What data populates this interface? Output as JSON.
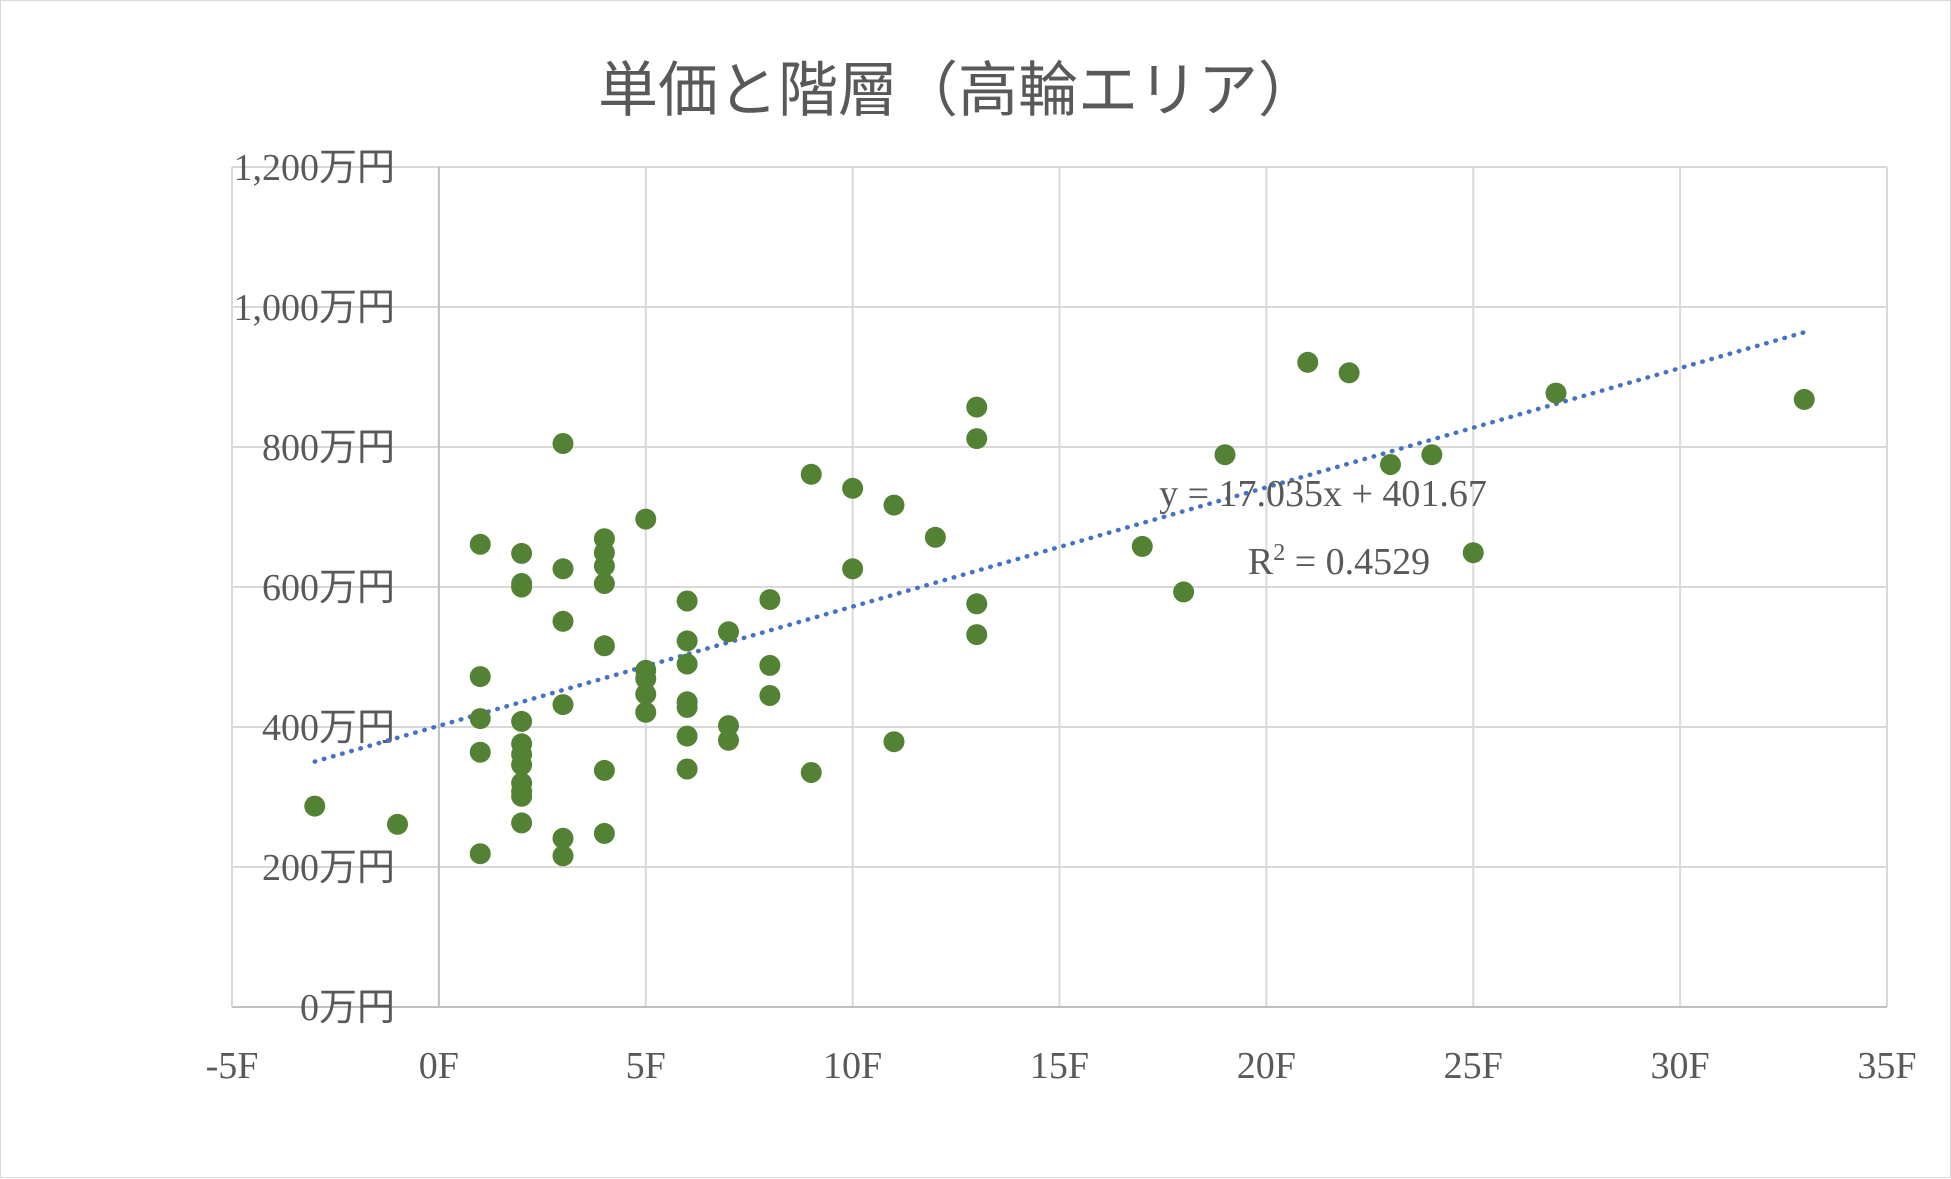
{
  "chart_data": {
    "type": "scatter",
    "title": "単価と階層（高輪エリア）",
    "xlabel": "",
    "ylabel": "",
    "xlim": [
      -5,
      35
    ],
    "ylim": [
      0,
      1200
    ],
    "x_ticks": [
      -5,
      0,
      5,
      10,
      15,
      20,
      25,
      30,
      35
    ],
    "x_tick_labels": [
      "-5F",
      "0F",
      "5F",
      "10F",
      "15F",
      "20F",
      "25F",
      "30F",
      "35F"
    ],
    "y_ticks": [
      0,
      200,
      400,
      600,
      800,
      1000,
      1200
    ],
    "y_tick_labels": [
      "0万円",
      "200万円",
      "400万円",
      "600万円",
      "800万円",
      "1,000万円",
      "1,200万円"
    ],
    "grid": true,
    "legend": "none",
    "marker_color": "#548235",
    "trendline_color": "#4472c4",
    "series": [
      {
        "points": [
          [
            -3,
            287
          ],
          [
            -1,
            261
          ],
          [
            1,
            661
          ],
          [
            1,
            472
          ],
          [
            1,
            412
          ],
          [
            1,
            364
          ],
          [
            1,
            219
          ],
          [
            2,
            648
          ],
          [
            2,
            605
          ],
          [
            2,
            600
          ],
          [
            2,
            408
          ],
          [
            2,
            376
          ],
          [
            2,
            361
          ],
          [
            2,
            346
          ],
          [
            2,
            320
          ],
          [
            2,
            308
          ],
          [
            2,
            301
          ],
          [
            2,
            263
          ],
          [
            3,
            805
          ],
          [
            3,
            626
          ],
          [
            3,
            551
          ],
          [
            3,
            432
          ],
          [
            3,
            241
          ],
          [
            3,
            216
          ],
          [
            4,
            669
          ],
          [
            4,
            649
          ],
          [
            4,
            630
          ],
          [
            4,
            605
          ],
          [
            4,
            516
          ],
          [
            4,
            338
          ],
          [
            4,
            248
          ],
          [
            5,
            697
          ],
          [
            5,
            481
          ],
          [
            5,
            469
          ],
          [
            5,
            447
          ],
          [
            5,
            421
          ],
          [
            6,
            580
          ],
          [
            6,
            523
          ],
          [
            6,
            490
          ],
          [
            6,
            436
          ],
          [
            6,
            428
          ],
          [
            6,
            387
          ],
          [
            6,
            340
          ],
          [
            7,
            536
          ],
          [
            7,
            402
          ],
          [
            7,
            381
          ],
          [
            8,
            582
          ],
          [
            8,
            488
          ],
          [
            8,
            445
          ],
          [
            9,
            761
          ],
          [
            9,
            335
          ],
          [
            10,
            741
          ],
          [
            10,
            626
          ],
          [
            11,
            717
          ],
          [
            11,
            379
          ],
          [
            12,
            671
          ],
          [
            13,
            857
          ],
          [
            13,
            812
          ],
          [
            13,
            576
          ],
          [
            13,
            532
          ],
          [
            17,
            658
          ],
          [
            18,
            593
          ],
          [
            19,
            789
          ],
          [
            21,
            921
          ],
          [
            22,
            906
          ],
          [
            23,
            775
          ],
          [
            24,
            789
          ],
          [
            25,
            649
          ],
          [
            27,
            877
          ],
          [
            33,
            868
          ]
        ]
      }
    ],
    "trendline": {
      "type": "linear",
      "slope": 17.035,
      "intercept": 401.67,
      "x_range": [
        -3,
        33
      ],
      "equation": "y = 17.035x + 401.67",
      "r2_label": "R",
      "r2_sup": "2",
      "r2_value": " = 0.4529"
    }
  }
}
